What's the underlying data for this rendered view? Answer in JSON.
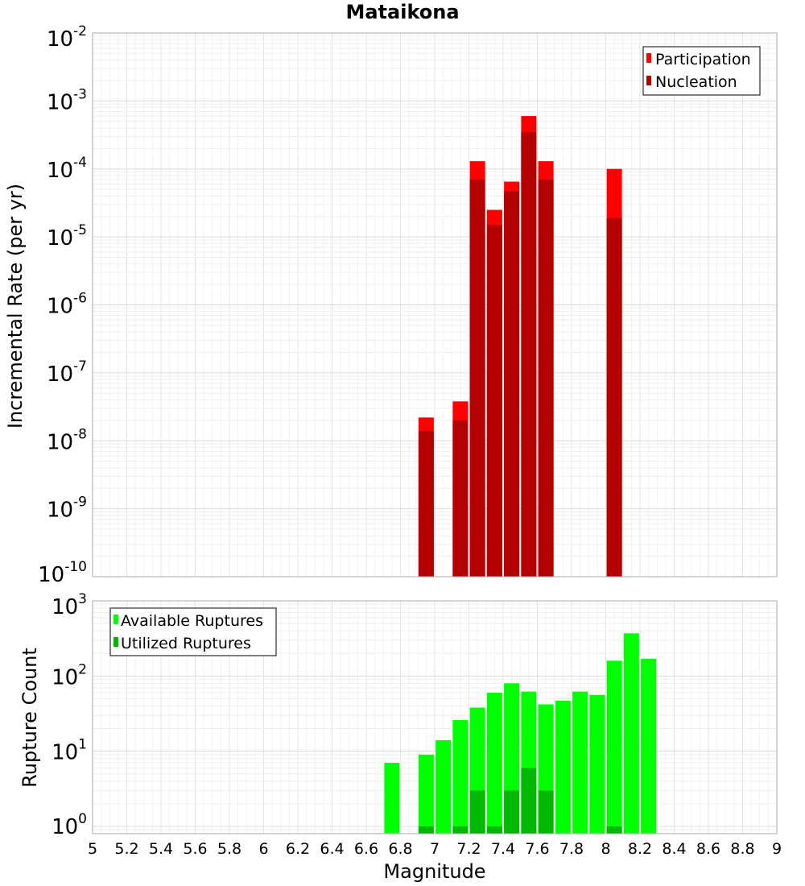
{
  "chart_data": [
    {
      "type": "bar",
      "title": "Mataikona",
      "ylabel": "Incremental Rate (per yr)",
      "yscale": "log",
      "ylim": [
        1e-10,
        0.01
      ],
      "xlim": [
        5,
        9
      ],
      "grid": true,
      "legend_position": "top-right",
      "y_ticks": [
        {
          "base": "10",
          "exp": "-10",
          "value": 1e-10
        },
        {
          "base": "10",
          "exp": "-9",
          "value": 1e-09
        },
        {
          "base": "10",
          "exp": "-8",
          "value": 1e-08
        },
        {
          "base": "10",
          "exp": "-7",
          "value": 1e-07
        },
        {
          "base": "10",
          "exp": "-6",
          "value": 1e-06
        },
        {
          "base": "10",
          "exp": "-5",
          "value": 1e-05
        },
        {
          "base": "10",
          "exp": "-4",
          "value": 0.0001
        },
        {
          "base": "10",
          "exp": "-3",
          "value": 0.001
        },
        {
          "base": "10",
          "exp": "-2",
          "value": 0.01
        }
      ],
      "series": [
        {
          "name": "Participation",
          "color": "#ff0000",
          "points": [
            {
              "x": 6.95,
              "y": 2.2e-08
            },
            {
              "x": 7.15,
              "y": 3.8e-08
            },
            {
              "x": 7.25,
              "y": 0.00013
            },
            {
              "x": 7.35,
              "y": 2.5e-05
            },
            {
              "x": 7.45,
              "y": 6.5e-05
            },
            {
              "x": 7.55,
              "y": 0.0006
            },
            {
              "x": 7.65,
              "y": 0.00013
            },
            {
              "x": 8.05,
              "y": 0.0001
            }
          ]
        },
        {
          "name": "Nucleation",
          "color": "#b30000",
          "points": [
            {
              "x": 6.95,
              "y": 1.4e-08
            },
            {
              "x": 7.15,
              "y": 2e-08
            },
            {
              "x": 7.25,
              "y": 7e-05
            },
            {
              "x": 7.35,
              "y": 1.5e-05
            },
            {
              "x": 7.45,
              "y": 4.7e-05
            },
            {
              "x": 7.55,
              "y": 0.00035
            },
            {
              "x": 7.65,
              "y": 7e-05
            },
            {
              "x": 8.05,
              "y": 1.9e-05
            }
          ]
        }
      ]
    },
    {
      "type": "bar",
      "ylabel": "Rupture Count",
      "xlabel": "Magnitude",
      "yscale": "log",
      "ylim": [
        0.8,
        1000
      ],
      "xlim": [
        5,
        9
      ],
      "grid": true,
      "legend_position": "top-left",
      "x_ticks": [
        "5",
        "5.2",
        "5.4",
        "5.6",
        "5.8",
        "6",
        "6.2",
        "6.4",
        "6.6",
        "6.8",
        "7",
        "7.2",
        "7.4",
        "7.6",
        "7.8",
        "8",
        "8.2",
        "8.4",
        "8.6",
        "8.8",
        "9"
      ],
      "y_ticks": [
        {
          "base": "10",
          "exp": "0",
          "value": 1
        },
        {
          "base": "10",
          "exp": "1",
          "value": 10
        },
        {
          "base": "10",
          "exp": "2",
          "value": 100
        },
        {
          "base": "10",
          "exp": "3",
          "value": 1000
        }
      ],
      "series": [
        {
          "name": "Available Ruptures",
          "color": "#00ff00",
          "points": [
            {
              "x": 6.75,
              "y": 7
            },
            {
              "x": 6.95,
              "y": 9
            },
            {
              "x": 7.05,
              "y": 14
            },
            {
              "x": 7.15,
              "y": 26
            },
            {
              "x": 7.25,
              "y": 38
            },
            {
              "x": 7.35,
              "y": 60
            },
            {
              "x": 7.45,
              "y": 80
            },
            {
              "x": 7.55,
              "y": 62
            },
            {
              "x": 7.65,
              "y": 42
            },
            {
              "x": 7.75,
              "y": 47
            },
            {
              "x": 7.85,
              "y": 62
            },
            {
              "x": 7.95,
              "y": 56
            },
            {
              "x": 8.05,
              "y": 160
            },
            {
              "x": 8.15,
              "y": 370
            },
            {
              "x": 8.25,
              "y": 170
            }
          ]
        },
        {
          "name": "Utilized Ruptures",
          "color": "#00b800",
          "points": [
            {
              "x": 6.95,
              "y": 1
            },
            {
              "x": 7.15,
              "y": 1
            },
            {
              "x": 7.25,
              "y": 3
            },
            {
              "x": 7.35,
              "y": 1
            },
            {
              "x": 7.45,
              "y": 3
            },
            {
              "x": 7.55,
              "y": 6
            },
            {
              "x": 7.65,
              "y": 3
            },
            {
              "x": 8.05,
              "y": 1
            }
          ]
        }
      ]
    }
  ]
}
